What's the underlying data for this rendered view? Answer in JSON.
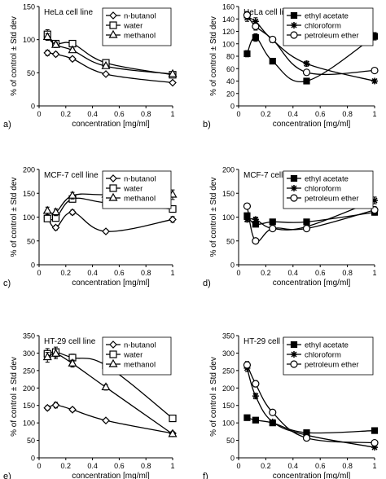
{
  "chart_data": [
    {
      "type": "line",
      "panel_letter": "a)",
      "title": "HeLa cell line",
      "xlabel": "concentration [mg/ml]",
      "ylabel": "% of control ± Std dev",
      "xlim": [
        0,
        1
      ],
      "ylim": [
        0,
        150
      ],
      "xticks": [
        0,
        0.2,
        0.4,
        0.6,
        0.8,
        1
      ],
      "xtick_labels": [
        "0",
        "0.2",
        "0.4",
        "0.6",
        "0.8",
        "1"
      ],
      "yticks": [
        0,
        50,
        100,
        150
      ],
      "ytick_labels": [
        "0",
        "50",
        "100",
        "150"
      ],
      "legend_position": "top-right",
      "series": [
        {
          "name": "n-butanol",
          "marker": "diamond",
          "x": [
            0.0625,
            0.125,
            0.25,
            0.5,
            1
          ],
          "y": [
            80,
            78,
            71,
            48,
            35
          ],
          "err": [
            4,
            3,
            3,
            2,
            2
          ]
        },
        {
          "name": "water",
          "marker": "square",
          "x": [
            0.0625,
            0.125,
            0.25,
            0.5,
            1
          ],
          "y": [
            108,
            94,
            94,
            65,
            47
          ],
          "err": [
            7,
            4,
            4,
            3,
            2
          ]
        },
        {
          "name": "methanol",
          "marker": "triangle",
          "x": [
            0.0625,
            0.125,
            0.25,
            0.5,
            1
          ],
          "y": [
            104,
            92,
            84,
            60,
            48
          ],
          "err": [
            5,
            4,
            3,
            3,
            2
          ]
        }
      ]
    },
    {
      "type": "line",
      "panel_letter": "b)",
      "title": "HeLa cell line",
      "xlabel": "concentration [mg/ml]",
      "ylabel": "% of control ± Std dev",
      "xlim": [
        0,
        1
      ],
      "ylim": [
        0,
        160
      ],
      "xticks": [
        0,
        0.2,
        0.4,
        0.6,
        0.8,
        1
      ],
      "xtick_labels": [
        "0",
        "0.2",
        "0.4",
        "0.6",
        "0.8",
        "1"
      ],
      "yticks": [
        0,
        20,
        40,
        60,
        80,
        100,
        120,
        140,
        160
      ],
      "ytick_labels": [
        "0",
        "20",
        "40",
        "60",
        "80",
        "100",
        "120",
        "140",
        "160"
      ],
      "legend_position": "top-right",
      "series": [
        {
          "name": "ethyl acetate",
          "marker": "filled-square",
          "x": [
            0.0625,
            0.125,
            0.25,
            0.5,
            1
          ],
          "y": [
            84,
            110,
            72,
            40,
            112
          ],
          "err": [
            5,
            6,
            3,
            2,
            6
          ]
        },
        {
          "name": "chloroform",
          "marker": "star",
          "x": [
            0.0625,
            0.125,
            0.25,
            0.5,
            1
          ],
          "y": [
            142,
            136,
            106,
            68,
            40
          ],
          "err": [
            6,
            6,
            4,
            4,
            3
          ]
        },
        {
          "name": "petroleum ether",
          "marker": "circle",
          "x": [
            0.0625,
            0.125,
            0.25,
            0.5,
            1
          ],
          "y": [
            146,
            128,
            107,
            54,
            57
          ],
          "err": [
            6,
            6,
            4,
            3,
            3
          ]
        }
      ]
    },
    {
      "type": "line",
      "panel_letter": "c)",
      "title": "MCF-7 cell line",
      "xlabel": "concentration [mg/ml]",
      "ylabel": "% of control ± Std dev",
      "xlim": [
        0,
        1
      ],
      "ylim": [
        0,
        200
      ],
      "xticks": [
        0,
        0.2,
        0.4,
        0.6,
        0.8,
        1
      ],
      "xtick_labels": [
        "0",
        "0.2",
        "0.4",
        "0.6",
        "0.8",
        "1"
      ],
      "yticks": [
        0,
        50,
        100,
        150,
        200
      ],
      "ytick_labels": [
        "0",
        "50",
        "100",
        "150",
        "200"
      ],
      "legend_position": "top-right",
      "series": [
        {
          "name": "n-butanol",
          "marker": "diamond",
          "x": [
            0.0625,
            0.125,
            0.25,
            0.5,
            1
          ],
          "y": [
            100,
            78,
            110,
            70,
            95
          ],
          "err": [
            5,
            5,
            5,
            4,
            6
          ]
        },
        {
          "name": "water",
          "marker": "square",
          "x": [
            0.0625,
            0.125,
            0.25,
            0.5,
            1
          ],
          "y": [
            97,
            98,
            138,
            130,
            117
          ],
          "err": [
            6,
            6,
            6,
            6,
            6
          ]
        },
        {
          "name": "methanol",
          "marker": "triangle",
          "x": [
            0.0625,
            0.125,
            0.25,
            0.5,
            1
          ],
          "y": [
            113,
            110,
            145,
            147,
            147
          ],
          "err": [
            8,
            7,
            7,
            9,
            10
          ]
        }
      ]
    },
    {
      "type": "line",
      "panel_letter": "d)",
      "title": "MCF-7 cell line",
      "xlabel": "concentration [mg/ml]",
      "ylabel": "% of control ± Std dev",
      "xlim": [
        0,
        1
      ],
      "ylim": [
        0,
        200
      ],
      "xticks": [
        0,
        0.2,
        0.4,
        0.6,
        0.8,
        1
      ],
      "xtick_labels": [
        "0",
        "0.2",
        "0.4",
        "0.6",
        "0.8",
        "1"
      ],
      "yticks": [
        0,
        50,
        100,
        150,
        200
      ],
      "ytick_labels": [
        "0",
        "50",
        "100",
        "150",
        "200"
      ],
      "legend_position": "top-right",
      "series": [
        {
          "name": "ethyl acetate",
          "marker": "filled-square",
          "x": [
            0.0625,
            0.125,
            0.25,
            0.5,
            1
          ],
          "y": [
            103,
            85,
            90,
            90,
            110
          ],
          "err": [
            5,
            5,
            4,
            4,
            6
          ]
        },
        {
          "name": "chloroform",
          "marker": "star",
          "x": [
            0.0625,
            0.125,
            0.25,
            0.5,
            1
          ],
          "y": [
            95,
            95,
            76,
            80,
            135
          ],
          "err": [
            5,
            5,
            4,
            4,
            7
          ]
        },
        {
          "name": "petroleum ether",
          "marker": "circle",
          "x": [
            0.0625,
            0.125,
            0.25,
            0.5,
            1
          ],
          "y": [
            123,
            50,
            76,
            76,
            115
          ],
          "err": [
            6,
            4,
            4,
            4,
            7
          ]
        }
      ]
    },
    {
      "type": "line",
      "panel_letter": "e)",
      "title": "HT-29 cell line",
      "xlabel": "concentration [mg/ml]",
      "ylabel": "% of control ± Std dev",
      "xlim": [
        0,
        1
      ],
      "ylim": [
        0,
        350
      ],
      "xticks": [
        0,
        0.2,
        0.4,
        0.6,
        0.8,
        1
      ],
      "xtick_labels": [
        "0",
        "0.2",
        "0.4",
        "0.6",
        "0.8",
        "1"
      ],
      "yticks": [
        0,
        50,
        100,
        150,
        200,
        250,
        300,
        350
      ],
      "ytick_labels": [
        "0",
        "50",
        "100",
        "150",
        "200",
        "250",
        "300",
        "350"
      ],
      "legend_position": "top-right",
      "series": [
        {
          "name": "n-butanol",
          "marker": "diamond",
          "x": [
            0.0625,
            0.125,
            0.25,
            0.5,
            1
          ],
          "y": [
            143,
            151,
            138,
            107,
            70
          ],
          "err": [
            6,
            8,
            6,
            5,
            5
          ]
        },
        {
          "name": "water",
          "marker": "square",
          "x": [
            0.0625,
            0.125,
            0.25,
            0.5,
            1
          ],
          "y": [
            298,
            303,
            287,
            265,
            113
          ],
          "err": [
            15,
            14,
            10,
            10,
            6
          ]
        },
        {
          "name": "methanol",
          "marker": "triangle",
          "x": [
            0.0625,
            0.125,
            0.25,
            0.5,
            1
          ],
          "y": [
            288,
            298,
            270,
            202,
            68
          ],
          "err": [
            14,
            14,
            10,
            8,
            5
          ]
        }
      ]
    },
    {
      "type": "line",
      "panel_letter": "f)",
      "title": "HT-29 cell line",
      "xlabel": "concentration [mg/ml]",
      "ylabel": "% of control ± Std dev",
      "xlim": [
        0,
        1
      ],
      "ylim": [
        0,
        350
      ],
      "xticks": [
        0,
        0.2,
        0.4,
        0.6,
        0.8,
        1
      ],
      "xtick_labels": [
        "0",
        "0.2",
        "0.4",
        "0.6",
        "0.8",
        "1"
      ],
      "yticks": [
        0,
        50,
        100,
        150,
        200,
        250,
        300,
        350
      ],
      "ytick_labels": [
        "0",
        "50",
        "100",
        "150",
        "200",
        "250",
        "300",
        "350"
      ],
      "legend_position": "top-right",
      "series": [
        {
          "name": "ethyl acetate",
          "marker": "filled-square",
          "x": [
            0.0625,
            0.125,
            0.25,
            0.5,
            1
          ],
          "y": [
            115,
            108,
            100,
            72,
            78
          ],
          "err": [
            5,
            5,
            4,
            4,
            4
          ]
        },
        {
          "name": "chloroform",
          "marker": "star",
          "x": [
            0.0625,
            0.125,
            0.25,
            0.5,
            1
          ],
          "y": [
            257,
            177,
            103,
            65,
            30
          ],
          "err": [
            10,
            8,
            5,
            4,
            3
          ]
        },
        {
          "name": "petroleum ether",
          "marker": "circle",
          "x": [
            0.0625,
            0.125,
            0.25,
            0.5,
            1
          ],
          "y": [
            266,
            212,
            130,
            57,
            43
          ],
          "err": [
            10,
            9,
            6,
            4,
            3
          ]
        }
      ]
    }
  ]
}
